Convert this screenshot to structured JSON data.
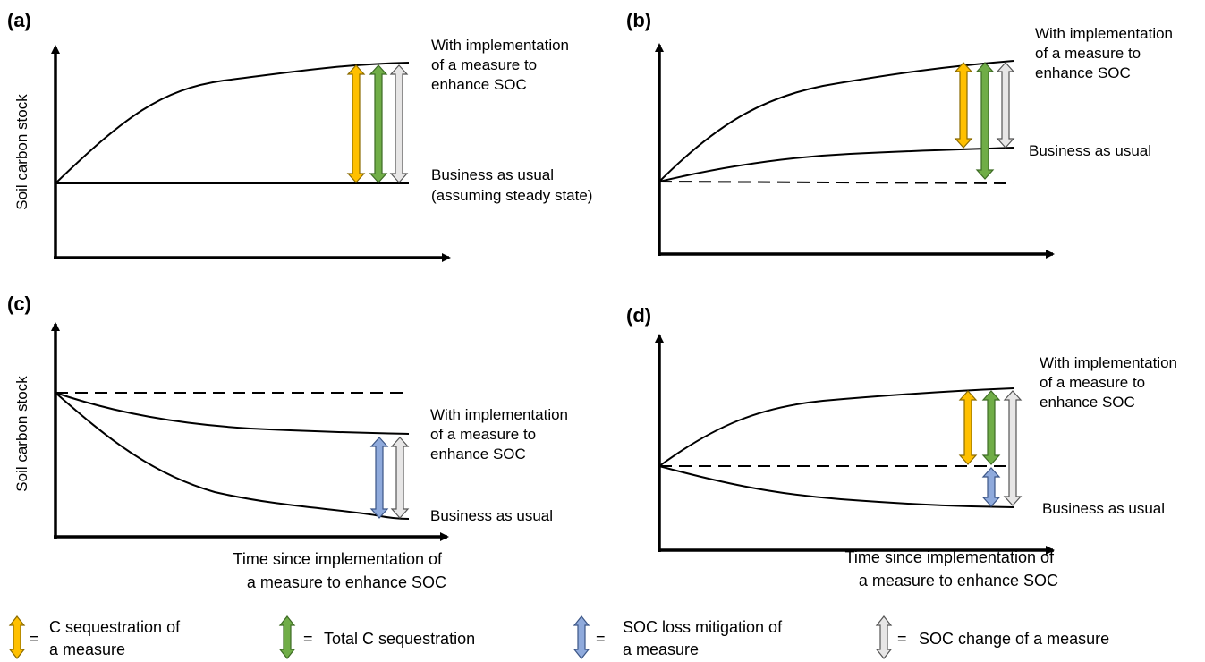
{
  "panels": {
    "a": {
      "label": "(a)",
      "ylabel": "Soil carbon stock",
      "measure_label": [
        "With implementation",
        "of a measure to",
        "enhance SOC"
      ],
      "bau_label": [
        "Business as usual",
        "(assuming steady state)"
      ]
    },
    "b": {
      "label": "(b)",
      "measure_label": [
        "With implementation",
        "of a measure to",
        "enhance SOC"
      ],
      "bau_label": [
        "Business as usual"
      ]
    },
    "c": {
      "label": "(c)",
      "ylabel": "Soil carbon stock",
      "measure_label": [
        "With implementation",
        "of a measure to",
        "enhance SOC"
      ],
      "bau_label": [
        "Business as usual"
      ],
      "xlabel": [
        "Time since implementation of",
        "a measure to enhance SOC"
      ]
    },
    "d": {
      "label": "(d)",
      "measure_label": [
        "With implementation",
        "of a measure to",
        "enhance SOC"
      ],
      "bau_label": [
        "Business as usual"
      ],
      "xlabel": [
        "Time since implementation of",
        "a measure to enhance SOC"
      ]
    }
  },
  "legend": [
    {
      "symbol": "=",
      "lines": [
        "C sequestration of",
        "a measure"
      ],
      "color": "#FFC000",
      "stroke": "#8a6a00"
    },
    {
      "symbol": "=",
      "lines": [
        "Total C sequestration"
      ],
      "color": "#70AD47",
      "stroke": "#3d6b24"
    },
    {
      "symbol": "=",
      "lines": [
        "SOC loss mitigation of",
        "a measure"
      ],
      "color": "#8FAADC",
      "stroke": "#3b5586"
    },
    {
      "symbol": "=",
      "lines": [
        "SOC change of a measure"
      ],
      "color": "#E7E6E6",
      "stroke": "#555555"
    }
  ]
}
